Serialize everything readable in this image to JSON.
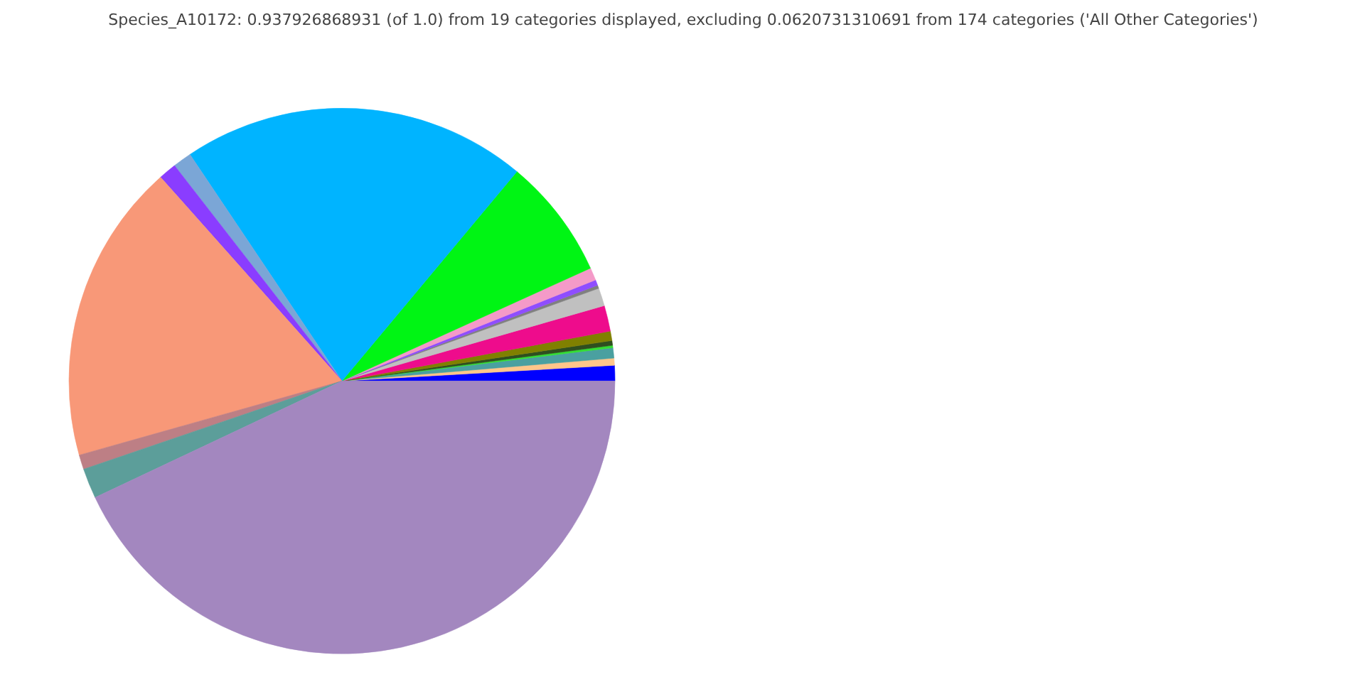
{
  "chart_data": {
    "type": "pie",
    "title": "Species_A10172: 0.937926868931 (of 1.0) from 19 categories displayed, excluding 0.0620731310691 from 174 categories ('All Other Categories')",
    "categories": [
      null,
      null,
      null,
      null,
      null,
      null,
      null,
      null,
      null,
      null,
      null,
      null,
      null,
      null,
      null,
      null,
      null,
      null,
      null
    ],
    "values": [
      0.92,
      0.42,
      0.61,
      0.14,
      0.28,
      0.56,
      1.53,
      1.06,
      0.19,
      0.33,
      0.75,
      7.14,
      20.47,
      1.11,
      1.06,
      17.81,
      0.86,
      1.78,
      42.98
    ],
    "colors": [
      "#0000ff",
      "#ffc68a",
      "#4aa0a0",
      "#33dd33",
      "#2f4f1f",
      "#808000",
      "#ee0c8c",
      "#c0c0c0",
      "#808080",
      "#8f4dff",
      "#f49ac8",
      "#00f514",
      "#00b4ff",
      "#7ba6d6",
      "#8a3dff",
      "#f89878",
      "#bd7f85",
      "#5c9e9a",
      "#a387bf"
    ]
  }
}
